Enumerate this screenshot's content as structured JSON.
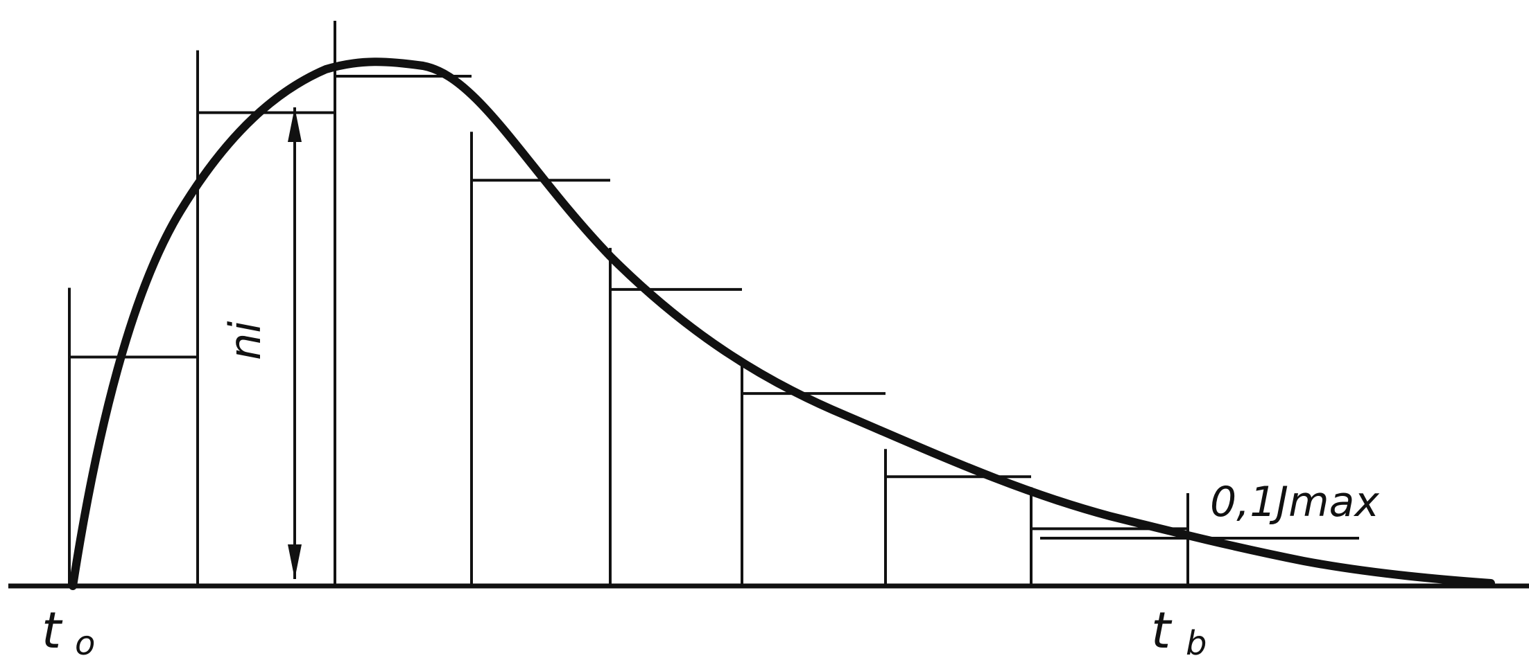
{
  "labels": {
    "start": "t",
    "start_sub": "o",
    "end": "t",
    "end_sub": "b",
    "bar_height": "ni",
    "threshold": "0,1Jmax"
  },
  "chart_data": {
    "type": "bar",
    "description_of_values": "relative bar heights (fraction of peak) read from step outline",
    "bins": 9,
    "values": [
      0.44,
      0.91,
      0.98,
      0.78,
      0.57,
      0.37,
      0.21,
      0.11,
      0.0
    ],
    "curve_peak_bin": 2
  }
}
